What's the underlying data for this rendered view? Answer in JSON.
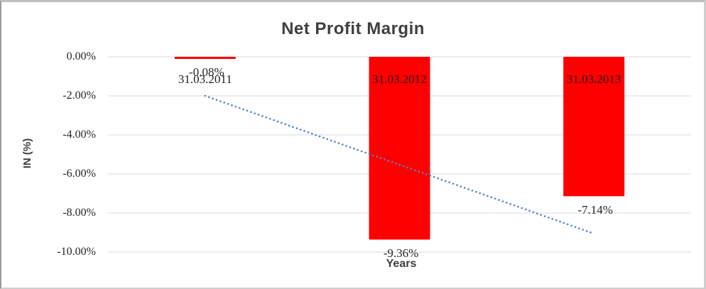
{
  "chart_data": {
    "type": "bar",
    "title": "Net Profit Margin",
    "xlabel": "Years",
    "ylabel": "IN (%)",
    "categories": [
      "31.03.2011",
      "31.03.2012",
      "31.03.2013"
    ],
    "series": [
      {
        "name": "Net Profit Margin",
        "values": [
          -0.08,
          -9.36,
          -7.14
        ]
      }
    ],
    "data_labels": [
      "-0.08%",
      "-9.36%",
      "-7.14%"
    ],
    "y_tick_labels": [
      "0.00%",
      "-2.00%",
      "-4.00%",
      "-6.00%",
      "-8.00%",
      "-10.00%"
    ],
    "ylim": [
      0,
      -10
    ],
    "grid": true,
    "legend": "none",
    "bar_color": "#ff0000",
    "gridline_color": "#d9d9d9",
    "trendline": {
      "type": "linear",
      "style": "dotted",
      "color": "#4a86c8"
    }
  }
}
